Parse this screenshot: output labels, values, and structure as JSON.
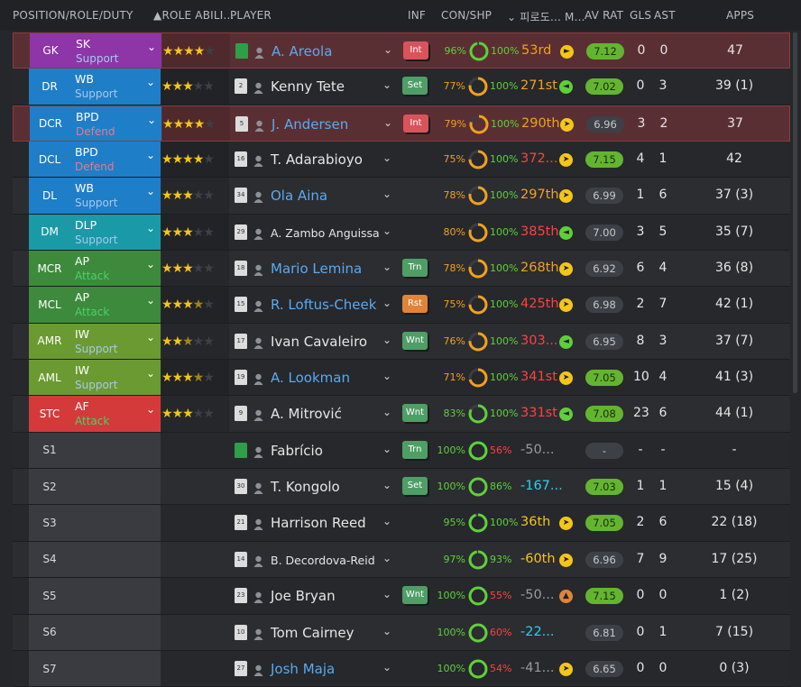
{
  "header": {
    "position": "POSITION/ROLE/DUTY",
    "role_ability": "ROLE ABILI...",
    "player": "PLAYER",
    "inf": "INF",
    "con_shp": "CON/SHP",
    "korean": "피로도... M...",
    "av_rat": "AV RAT",
    "gls": "GLS",
    "ast": "AST",
    "apps": "APPS"
  },
  "colors": {
    "gk": "#8e35a8",
    "blue": "#1f7ec8",
    "teal": "#1a9aa6",
    "green": "#3d8a3c",
    "lime": "#6c9a32",
    "red": "#d53a3a",
    "support": "#a6c8ee",
    "defend": "#e57a8a",
    "attack": "#4cd06a",
    "yellow": "#f5c518",
    "orange": "#f0a020",
    "redText": "#ff4040",
    "cyan": "#2ad0f0"
  },
  "rows": [
    {
      "pos": "GK",
      "role": "SK",
      "duty": "Support",
      "dutyType": "support",
      "bg": "gk",
      "stars": [
        1,
        1,
        1,
        1,
        0
      ],
      "shirt": "gk",
      "num": "",
      "name": "A. Areola",
      "nameColor": "blue",
      "inf": "Int",
      "infType": "red",
      "con": "96%",
      "conRing": 0.96,
      "conColor": "#5fcf3a",
      "shp": "100%",
      "shpRing": 1,
      "shpColor": "#5fcf3a",
      "rank": "53rd",
      "rankColor": "#f0a020",
      "mark": "►",
      "markColor": "#f5c518",
      "rat": "7.12",
      "ratType": "g",
      "gls": "0",
      "ast": "0",
      "apps": "47",
      "hl": true
    },
    {
      "pos": "DR",
      "role": "WB",
      "duty": "Support",
      "dutyType": "support",
      "bg": "blue",
      "stars": [
        1,
        1,
        1,
        0,
        0
      ],
      "shirt": "w",
      "num": "2",
      "name": "Kenny Tete",
      "nameColor": "white",
      "inf": "Set",
      "infType": "green",
      "con": "77%",
      "conRing": 0.77,
      "conColor": "#f0a020",
      "shp": "100%",
      "shpRing": 1,
      "shpColor": "#5fcf3a",
      "rank": "271st",
      "rankColor": "#f0a020",
      "mark": "◄",
      "markColor": "#5fcf3a",
      "rat": "7.02",
      "ratType": "g",
      "gls": "0",
      "ast": "3",
      "apps": "39 (1)",
      "hl": false
    },
    {
      "pos": "DCR",
      "role": "BPD",
      "duty": "Defend",
      "dutyType": "defend",
      "bg": "blue",
      "stars": [
        1,
        1,
        1,
        1,
        0
      ],
      "shirt": "w",
      "num": "5",
      "name": "J. Andersen",
      "nameColor": "blue",
      "inf": "Int",
      "infType": "red",
      "con": "79%",
      "conRing": 0.79,
      "conColor": "#f0a020",
      "shp": "100%",
      "shpRing": 1,
      "shpColor": "#5fcf3a",
      "rank": "290th",
      "rankColor": "#f0a020",
      "mark": "➤",
      "markColor": "#f5c518",
      "rat": "6.96",
      "ratType": "n",
      "gls": "3",
      "ast": "2",
      "apps": "37",
      "hl": true
    },
    {
      "pos": "DCL",
      "role": "BPD",
      "duty": "Defend",
      "dutyType": "defend",
      "bg": "blue",
      "stars": [
        1,
        1,
        1,
        1,
        0
      ],
      "shirt": "w",
      "num": "16",
      "name": "T. Adarabioyo",
      "nameColor": "white",
      "inf": "",
      "infType": "",
      "con": "75%",
      "conRing": 0.75,
      "conColor": "#f0a020",
      "shp": "100%",
      "shpRing": 1,
      "shpColor": "#5fcf3a",
      "rank": "372...",
      "rankColor": "#ff4040",
      "mark": "➤",
      "markColor": "#f5c518",
      "rat": "7.15",
      "ratType": "g",
      "gls": "4",
      "ast": "1",
      "apps": "42",
      "hl": false
    },
    {
      "pos": "DL",
      "role": "WB",
      "duty": "Support",
      "dutyType": "support",
      "bg": "blue",
      "stars": [
        1,
        1,
        1,
        0,
        0
      ],
      "shirt": "w",
      "num": "34",
      "name": "Ola Aina",
      "nameColor": "blue",
      "inf": "",
      "infType": "",
      "con": "78%",
      "conRing": 0.78,
      "conColor": "#f0a020",
      "shp": "100%",
      "shpRing": 1,
      "shpColor": "#5fcf3a",
      "rank": "297th",
      "rankColor": "#f0a020",
      "mark": "➤",
      "markColor": "#f5c518",
      "rat": "6.99",
      "ratType": "n",
      "gls": "1",
      "ast": "6",
      "apps": "37 (3)",
      "hl": false
    },
    {
      "pos": "DM",
      "role": "DLP",
      "duty": "Support",
      "dutyType": "support",
      "bg": "teal",
      "stars": [
        1,
        1,
        1,
        0,
        0
      ],
      "shirt": "w",
      "num": "29",
      "name": "A. Zambo Anguissa",
      "nameColor": "white",
      "small": true,
      "inf": "",
      "infType": "",
      "con": "80%",
      "conRing": 0.8,
      "conColor": "#f0a020",
      "shp": "100%",
      "shpRing": 1,
      "shpColor": "#5fcf3a",
      "rank": "385th",
      "rankColor": "#ff4040",
      "mark": "◄",
      "markColor": "#5fcf3a",
      "rat": "7.00",
      "ratType": "n",
      "gls": "3",
      "ast": "5",
      "apps": "35 (7)",
      "hl": false
    },
    {
      "pos": "MCR",
      "role": "AP",
      "duty": "Attack",
      "dutyType": "attack",
      "bg": "green",
      "stars": [
        1,
        1,
        1,
        0,
        0
      ],
      "shirt": "w",
      "num": "18",
      "name": "Mario Lemina",
      "nameColor": "blue",
      "inf": "Trn",
      "infType": "green",
      "con": "78%",
      "conRing": 0.78,
      "conColor": "#f0a020",
      "shp": "100%",
      "shpRing": 1,
      "shpColor": "#5fcf3a",
      "rank": "268th",
      "rankColor": "#f0a020",
      "mark": "➤",
      "markColor": "#f5c518",
      "rat": "6.92",
      "ratType": "n",
      "gls": "6",
      "ast": "4",
      "apps": "36 (8)",
      "hl": false
    },
    {
      "pos": "MCL",
      "role": "AP",
      "duty": "Attack",
      "dutyType": "attack",
      "bg": "green",
      "stars": [
        1,
        1,
        1,
        0.5,
        0
      ],
      "shirt": "w",
      "num": "15",
      "name": "R. Loftus-Cheek",
      "nameColor": "blue",
      "inf": "Rst",
      "infType": "orange",
      "con": "75%",
      "conRing": 0.75,
      "conColor": "#f0a020",
      "shp": "100%",
      "shpRing": 1,
      "shpColor": "#5fcf3a",
      "rank": "425th",
      "rankColor": "#ff4040",
      "mark": "➤",
      "markColor": "#f5c518",
      "rat": "6.98",
      "ratType": "n",
      "gls": "2",
      "ast": "7",
      "apps": "42 (1)",
      "hl": false
    },
    {
      "pos": "AMR",
      "role": "IW",
      "duty": "Support",
      "dutyType": "support",
      "bg": "lime",
      "stars": [
        1,
        1,
        0.5,
        0,
        0
      ],
      "shirt": "w",
      "num": "17",
      "name": "Ivan Cavaleiro",
      "nameColor": "white",
      "inf": "Wnt",
      "infType": "green",
      "con": "76%",
      "conRing": 0.76,
      "conColor": "#f0a020",
      "shp": "100%",
      "shpRing": 1,
      "shpColor": "#5fcf3a",
      "rank": "303...",
      "rankColor": "#ff4040",
      "mark": "◄",
      "markColor": "#5fcf3a",
      "rat": "6.95",
      "ratType": "n",
      "gls": "8",
      "ast": "3",
      "apps": "37 (7)",
      "hl": false
    },
    {
      "pos": "AML",
      "role": "IW",
      "duty": "Support",
      "dutyType": "support",
      "bg": "lime",
      "stars": [
        1,
        1,
        1,
        0.5,
        0
      ],
      "shirt": "w",
      "num": "19",
      "name": "A. Lookman",
      "nameColor": "blue",
      "inf": "",
      "infType": "",
      "con": "71%",
      "conRing": 0.71,
      "conColor": "#f0a020",
      "shp": "100%",
      "shpRing": 1,
      "shpColor": "#5fcf3a",
      "rank": "341st",
      "rankColor": "#ff4040",
      "mark": "➤",
      "markColor": "#f5c518",
      "rat": "7.05",
      "ratType": "g",
      "gls": "10",
      "ast": "4",
      "apps": "41 (3)",
      "hl": false
    },
    {
      "pos": "STC",
      "role": "AF",
      "duty": "Attack",
      "dutyType": "attack",
      "bg": "red",
      "stars": [
        1,
        1,
        1,
        0,
        0
      ],
      "shirt": "w",
      "num": "9",
      "name": "A. Mitrović",
      "nameColor": "white",
      "inf": "Wnt",
      "infType": "green",
      "con": "83%",
      "conRing": 0.83,
      "conColor": "#5fcf3a",
      "shp": "100%",
      "shpRing": 1,
      "shpColor": "#5fcf3a",
      "rank": "331st",
      "rankColor": "#ff4040",
      "mark": "◄",
      "markColor": "#5fcf3a",
      "rat": "7.08",
      "ratType": "g",
      "gls": "23",
      "ast": "6",
      "apps": "44 (1)",
      "hl": false
    },
    {
      "pos": "S1",
      "role": "",
      "duty": "",
      "dutyType": "",
      "bg": "sub",
      "stars": [],
      "shirt": "gk",
      "num": "",
      "name": "Fabrício",
      "nameColor": "white",
      "inf": "Trn",
      "infType": "green",
      "con": "100%",
      "conRing": 1,
      "conColor": "#5fcf3a",
      "shp": "56%",
      "shpRing": 0.56,
      "shpColor": "#ff4040",
      "rank": "-50...",
      "rankColor": "#9a9a9a",
      "mark": "",
      "markColor": "",
      "rat": "-",
      "ratType": "n",
      "gls": "-",
      "ast": "-",
      "apps": "-",
      "hl": false
    },
    {
      "pos": "S2",
      "role": "",
      "duty": "",
      "dutyType": "",
      "bg": "sub",
      "stars": [],
      "shirt": "w",
      "num": "30",
      "name": "T. Kongolo",
      "nameColor": "white",
      "inf": "Set",
      "infType": "green",
      "con": "100%",
      "conRing": 1,
      "conColor": "#5fcf3a",
      "shp": "86%",
      "shpRing": 0.86,
      "shpColor": "#5fcf3a",
      "rank": "-167...",
      "rankColor": "#2ad0f0",
      "mark": "",
      "markColor": "",
      "rat": "7.03",
      "ratType": "g",
      "gls": "1",
      "ast": "1",
      "apps": "15 (4)",
      "hl": false
    },
    {
      "pos": "S3",
      "role": "",
      "duty": "",
      "dutyType": "",
      "bg": "sub",
      "stars": [],
      "shirt": "w",
      "num": "21",
      "name": "Harrison Reed",
      "nameColor": "white",
      "inf": "",
      "infType": "",
      "con": "95%",
      "conRing": 0.95,
      "conColor": "#5fcf3a",
      "shp": "100%",
      "shpRing": 1,
      "shpColor": "#5fcf3a",
      "rank": "36th",
      "rankColor": "#f5c518",
      "mark": "➤",
      "markColor": "#f5c518",
      "rat": "7.05",
      "ratType": "g",
      "gls": "2",
      "ast": "6",
      "apps": "22 (18)",
      "hl": false
    },
    {
      "pos": "S4",
      "role": "",
      "duty": "",
      "dutyType": "",
      "bg": "sub",
      "stars": [],
      "shirt": "w",
      "num": "14",
      "name": "B. Decordova-Reid",
      "nameColor": "white",
      "small": true,
      "inf": "",
      "infType": "",
      "con": "97%",
      "conRing": 0.97,
      "conColor": "#5fcf3a",
      "shp": "93%",
      "shpRing": 0.93,
      "shpColor": "#5fcf3a",
      "rank": "-60th",
      "rankColor": "#f5c518",
      "mark": "➤",
      "markColor": "#f5c518",
      "rat": "6.96",
      "ratType": "n",
      "gls": "7",
      "ast": "9",
      "apps": "17 (25)",
      "hl": false
    },
    {
      "pos": "S5",
      "role": "",
      "duty": "",
      "dutyType": "",
      "bg": "sub",
      "stars": [],
      "shirt": "w",
      "num": "23",
      "name": "Joe Bryan",
      "nameColor": "white",
      "inf": "Wnt",
      "infType": "green",
      "con": "100%",
      "conRing": 1,
      "conColor": "#5fcf3a",
      "shp": "55%",
      "shpRing": 0.55,
      "shpColor": "#ff4040",
      "rank": "-50...",
      "rankColor": "#9a9a9a",
      "mark": "▲",
      "markColor": "#e0843a",
      "rat": "7.15",
      "ratType": "g",
      "gls": "0",
      "ast": "0",
      "apps": "1 (2)",
      "hl": false
    },
    {
      "pos": "S6",
      "role": "",
      "duty": "",
      "dutyType": "",
      "bg": "sub",
      "stars": [],
      "shirt": "w",
      "num": "10",
      "name": "Tom Cairney",
      "nameColor": "white",
      "inf": "",
      "infType": "",
      "con": "100%",
      "conRing": 1,
      "conColor": "#5fcf3a",
      "shp": "60%",
      "shpRing": 0.6,
      "shpColor": "#ff4040",
      "rank": "-22...",
      "rankColor": "#2ad0f0",
      "mark": "",
      "markColor": "",
      "rat": "6.81",
      "ratType": "n",
      "gls": "0",
      "ast": "1",
      "apps": "7 (15)",
      "hl": false
    },
    {
      "pos": "S7",
      "role": "",
      "duty": "",
      "dutyType": "",
      "bg": "sub",
      "stars": [],
      "shirt": "w",
      "num": "27",
      "name": "Josh Maja",
      "nameColor": "blue",
      "inf": "",
      "infType": "",
      "con": "100%",
      "conRing": 1,
      "conColor": "#5fcf3a",
      "shp": "54%",
      "shpRing": 0.54,
      "shpColor": "#ff4040",
      "rank": "-41...",
      "rankColor": "#9a9a9a",
      "mark": "➤",
      "markColor": "#f5c518",
      "rat": "6.65",
      "ratType": "n",
      "gls": "0",
      "ast": "0",
      "apps": "0 (3)",
      "hl": false
    }
  ]
}
